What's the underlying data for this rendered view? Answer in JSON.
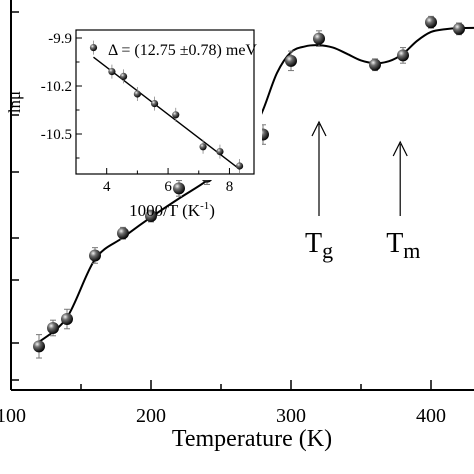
{
  "chart_data": [
    {
      "type": "scatter",
      "xlabel": "Temperature (K)",
      "ylabel": "",
      "xlim": [
        100,
        440
      ],
      "x_ticks": [
        100,
        200,
        300,
        400
      ],
      "x_tick_labels": [
        "100",
        "200",
        "300",
        "400"
      ],
      "y_tick_marks": 7,
      "series": [
        {
          "points": [
            {
              "x": 120,
              "y": 0.112
            },
            {
              "x": 130,
              "y": 0.159
            },
            {
              "x": 140,
              "y": 0.182
            },
            {
              "x": 160,
              "y": 0.345
            },
            {
              "x": 180,
              "y": 0.402
            },
            {
              "x": 200,
              "y": 0.446
            },
            {
              "x": 220,
              "y": 0.517
            },
            {
              "x": 240,
              "y": 0.547
            },
            {
              "x": 280,
              "y": 0.655
            },
            {
              "x": 300,
              "y": 0.844
            },
            {
              "x": 320,
              "y": 0.901
            },
            {
              "x": 360,
              "y": 0.834
            },
            {
              "x": 380,
              "y": 0.858
            },
            {
              "x": 400,
              "y": 0.943
            },
            {
              "x": 420,
              "y": 0.926
            }
          ],
          "error": [
            0.03,
            0.02,
            0.025,
            0.02,
            0.015,
            0.015,
            0.02,
            0.02,
            0.025,
            0.025,
            0.02,
            0.015,
            0.02,
            0.015,
            0.015
          ]
        },
        {
          "type": "line",
          "fit_curve": [
            {
              "x": 120,
              "y": 0.123
            },
            {
              "x": 140,
              "y": 0.186
            },
            {
              "x": 160,
              "y": 0.335
            },
            {
              "x": 180,
              "y": 0.391
            },
            {
              "x": 200,
              "y": 0.443
            },
            {
              "x": 220,
              "y": 0.491
            },
            {
              "x": 240,
              "y": 0.537
            },
            {
              "x": 260,
              "y": 0.594
            },
            {
              "x": 270,
              "y": 0.643
            },
            {
              "x": 280,
              "y": 0.718
            },
            {
              "x": 290,
              "y": 0.813
            },
            {
              "x": 300,
              "y": 0.866
            },
            {
              "x": 310,
              "y": 0.881
            },
            {
              "x": 320,
              "y": 0.884
            },
            {
              "x": 330,
              "y": 0.878
            },
            {
              "x": 340,
              "y": 0.862
            },
            {
              "x": 350,
              "y": 0.845
            },
            {
              "x": 360,
              "y": 0.838
            },
            {
              "x": 370,
              "y": 0.843
            },
            {
              "x": 380,
              "y": 0.862
            },
            {
              "x": 390,
              "y": 0.895
            },
            {
              "x": 400,
              "y": 0.918
            },
            {
              "x": 410,
              "y": 0.925
            },
            {
              "x": 420,
              "y": 0.928
            },
            {
              "x": 440,
              "y": 0.929
            }
          ]
        }
      ],
      "annotations": [
        {
          "base": "T",
          "sub": "g",
          "arrow_x": 320
        },
        {
          "base": "T",
          "sub": "m",
          "arrow_x": 378
        }
      ]
    },
    {
      "type": "scatter",
      "ylabel": "lnμ",
      "xlabel": "1000/T (K",
      "xlabel_sup": "-1",
      "xlabel_end": ")",
      "xlim": [
        3,
        8.8
      ],
      "ylim": [
        -10.75,
        -9.85
      ],
      "x_ticks": [
        4,
        6,
        8
      ],
      "x_tick_labels": [
        "4",
        "6",
        "8"
      ],
      "y_ticks": [
        -9.9,
        -10.2,
        -10.5
      ],
      "y_tick_labels": [
        "-9.9",
        "-10.2",
        "-10.5"
      ],
      "annotation": "Δ = (12.75 ±0.78) meV",
      "series": [
        {
          "points": [
            {
              "x": 3.57,
              "y": -9.96
            },
            {
              "x": 4.17,
              "y": -10.11
            },
            {
              "x": 4.55,
              "y": -10.14
            },
            {
              "x": 5.0,
              "y": -10.25
            },
            {
              "x": 5.56,
              "y": -10.31
            },
            {
              "x": 6.25,
              "y": -10.38
            },
            {
              "x": 7.14,
              "y": -10.58
            },
            {
              "x": 7.69,
              "y": -10.61
            },
            {
              "x": 8.33,
              "y": -10.7
            }
          ]
        },
        {
          "type": "line",
          "fit_line": [
            {
              "x": 3.57,
              "y": -10.02
            },
            {
              "x": 8.33,
              "y": -10.72
            }
          ]
        }
      ]
    }
  ]
}
